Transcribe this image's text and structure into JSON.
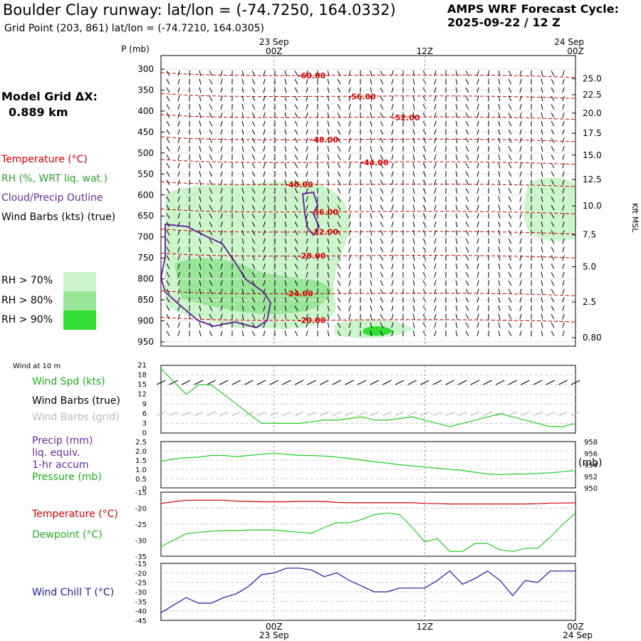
{
  "header": {
    "title": "Boulder Clay runway:  lat/lon = (-74.7250, 164.0332)",
    "subtitle": "Grid Point (203, 861) lat/lon = (-74.7210, 164.0305)",
    "cycle_line1": "AMPS WRF Forecast Cycle:",
    "cycle_line2": "2025-09-22 / 12  Z"
  },
  "left_panel": {
    "grid_label": "Model Grid ΔX:",
    "grid_value": "0.889 km",
    "legend": {
      "temperature": "Temperature (°C)",
      "rh": "RH (%, WRT liq. wat.)",
      "cloud": "Cloud/Precip Outline",
      "wind": "Wind Barbs (kts) (true)"
    },
    "rh_thresholds": [
      "RH > 70%",
      "RH > 80%",
      "RH > 90%"
    ]
  },
  "colors": {
    "temperature": "#d40000",
    "rh": "#2ca02c",
    "cloud": "#6a2c9a",
    "dewpoint": "#22cc22",
    "windchill": "#1a1aa0",
    "gridbarbs": "#bbbbbb",
    "rh70": "#ccf5cc",
    "rh80": "#99e699",
    "rh90": "#33dd33"
  },
  "time_axis": {
    "top_labels": [
      {
        "hour": 0,
        "line1": "23 Sep",
        "line2": "00Z"
      },
      {
        "hour": 12,
        "line1": "",
        "line2": "12Z"
      },
      {
        "hour": 24,
        "line1": "24 Sep",
        "line2": "00Z"
      }
    ],
    "bottom_labels": [
      {
        "hour": 0,
        "line1": "00Z",
        "line2": "23 Sep"
      },
      {
        "hour": 12,
        "line1": "12Z",
        "line2": ""
      },
      {
        "hour": 24,
        "line1": "00Z",
        "line2": "24 Sep"
      }
    ]
  },
  "chart_data": [
    {
      "type": "contour",
      "name": "cross-section",
      "x_range_hours": [
        -9,
        24
      ],
      "pressure_label": "P (mb)",
      "pressure_ticks": [
        300,
        350,
        400,
        450,
        500,
        550,
        600,
        650,
        700,
        750,
        800,
        850,
        900,
        950
      ],
      "kft_label": "Kft MSL",
      "kft_ticks": [
        {
          "label": "25.0",
          "p": 323
        },
        {
          "label": "22.5",
          "p": 361
        },
        {
          "label": "20.0",
          "p": 405
        },
        {
          "label": "17.5",
          "p": 453
        },
        {
          "label": "15.0",
          "p": 505
        },
        {
          "label": "12.5",
          "p": 563
        },
        {
          "label": "10.0",
          "p": 626
        },
        {
          "label": "7.5",
          "p": 695
        },
        {
          "label": "5.0",
          "p": 771
        },
        {
          "label": "2.5",
          "p": 855
        },
        {
          "label": "0.80",
          "p": 940
        }
      ],
      "isotherm_labels": [
        {
          "text": "-60.00",
          "hour": 3,
          "p": 315
        },
        {
          "text": "-56.00",
          "hour": 7,
          "p": 365
        },
        {
          "text": "-52.00",
          "hour": 10.5,
          "p": 415
        },
        {
          "text": "-48.00",
          "hour": 4,
          "p": 468
        },
        {
          "text": "-44.00",
          "hour": 8,
          "p": 522
        },
        {
          "text": "-40.00",
          "hour": 2,
          "p": 575
        },
        {
          "text": "-36.00",
          "hour": 4,
          "p": 640
        },
        {
          "text": "-32.00",
          "hour": 4,
          "p": 688
        },
        {
          "text": "-28.00",
          "hour": 3,
          "p": 745
        },
        {
          "text": "-24.00",
          "hour": 2,
          "p": 835
        },
        {
          "text": "-20.00",
          "hour": 3,
          "p": 898
        }
      ]
    },
    {
      "type": "line",
      "name": "wind",
      "title": "Wind at 10 m",
      "series_labels": [
        "Wind Spd (kts)",
        "Wind Barbs (true)",
        "Wind Barbs (grid)"
      ],
      "y_ticks": [
        0,
        3,
        6,
        9,
        12,
        15,
        18,
        21
      ],
      "ylim": [
        0,
        21
      ],
      "x": [
        -9,
        -8,
        -7,
        -6,
        -5,
        -4,
        -3,
        -2,
        -1,
        0,
        1,
        2,
        3,
        4,
        5,
        6,
        7,
        8,
        9,
        10,
        11,
        12,
        13,
        14,
        15,
        16,
        17,
        18,
        19,
        20,
        21,
        22,
        23,
        24
      ],
      "speed": [
        20,
        16,
        12,
        15,
        15,
        12,
        9,
        6,
        3,
        3,
        3,
        3,
        3.5,
        4,
        4,
        4.5,
        5,
        4,
        4,
        4.5,
        5,
        4,
        3,
        2,
        3,
        4,
        5,
        6,
        5,
        4,
        3,
        2,
        2,
        3
      ]
    },
    {
      "type": "line",
      "name": "pressure-precip",
      "series_labels": [
        "Precip (mm)",
        "liq. equiv.",
        "1-hr accum",
        "Pressure (mb)"
      ],
      "left_ticks": [
        "0",
        "0.5",
        "1.0",
        "1.5",
        "2.0",
        "2.5"
      ],
      "right_ticks": [
        "950",
        "952",
        "954",
        "956",
        "958"
      ],
      "ylim": [
        950,
        958
      ],
      "units": "(mb)",
      "x": [
        -9,
        -8,
        -7,
        -6,
        -5,
        -4,
        -3,
        -2,
        -1,
        0,
        1,
        2,
        3,
        4,
        5,
        6,
        7,
        8,
        9,
        10,
        11,
        12,
        13,
        14,
        15,
        16,
        17,
        18,
        19,
        20,
        21,
        22,
        23,
        24
      ],
      "pressure": [
        954.6,
        955.0,
        955.2,
        955.3,
        955.6,
        955.6,
        955.4,
        955.6,
        955.8,
        956.0,
        955.8,
        955.6,
        955.6,
        955.5,
        955.3,
        955.1,
        954.8,
        954.5,
        954.3,
        954.0,
        953.8,
        953.6,
        953.4,
        953.2,
        953.0,
        952.7,
        952.4,
        952.3,
        952.4,
        952.4,
        952.5,
        952.6,
        952.8,
        953.0
      ]
    },
    {
      "type": "line",
      "name": "temperature-dewpoint",
      "series_labels": [
        "Temperature (°C)",
        "Dewpoint (°C)"
      ],
      "y_ticks": [
        -35,
        -30,
        -25,
        -20,
        -15
      ],
      "ylim": [
        -35,
        -15
      ],
      "x": [
        -9,
        -8,
        -7,
        -6,
        -5,
        -4,
        -3,
        -2,
        -1,
        0,
        1,
        2,
        3,
        4,
        5,
        6,
        7,
        8,
        9,
        10,
        11,
        12,
        13,
        14,
        15,
        16,
        17,
        18,
        19,
        20,
        21,
        22,
        23,
        24
      ],
      "temperature": [
        -18.5,
        -18.0,
        -17.5,
        -17.5,
        -17.5,
        -17.5,
        -17.8,
        -17.9,
        -18.0,
        -18.0,
        -18.0,
        -17.9,
        -17.9,
        -17.9,
        -18.2,
        -18.3,
        -18.3,
        -18.3,
        -18.3,
        -18.3,
        -18.3,
        -18.5,
        -18.6,
        -18.7,
        -18.7,
        -18.7,
        -18.7,
        -18.7,
        -18.7,
        -18.7,
        -18.6,
        -18.4,
        -18.4,
        -18.3
      ],
      "dewpoint": [
        -32,
        -30,
        -28,
        -27.5,
        -27.2,
        -27,
        -27,
        -26.8,
        -26.8,
        -26.8,
        -27.2,
        -27.5,
        -27.8,
        -26,
        -24.5,
        -24.5,
        -23.5,
        -22,
        -21.5,
        -22,
        -26,
        -30.5,
        -29.5,
        -33.5,
        -33.5,
        -31,
        -31,
        -33,
        -33.5,
        -32.5,
        -32.5,
        -29,
        -25,
        -21.5
      ]
    },
    {
      "type": "line",
      "name": "wind-chill",
      "series_labels": [
        "Wind Chill T (°C)"
      ],
      "y_ticks": [
        -45,
        -40,
        -35,
        -30,
        -25,
        -20,
        -15
      ],
      "ylim": [
        -45,
        -15
      ],
      "x": [
        -9,
        -8,
        -7,
        -6,
        -5,
        -4,
        -3,
        -2,
        -1,
        0,
        1,
        2,
        3,
        4,
        5,
        6,
        7,
        8,
        9,
        10,
        11,
        12,
        13,
        14,
        15,
        16,
        17,
        18,
        19,
        20,
        21,
        22,
        23,
        24
      ],
      "windchill": [
        -41,
        -37,
        -33,
        -36,
        -36,
        -33,
        -31,
        -27,
        -21,
        -20,
        -17.5,
        -17.5,
        -18.5,
        -22,
        -20,
        -24,
        -27,
        -30,
        -30,
        -28,
        -28,
        -28,
        -24,
        -19,
        -26,
        -23,
        -19,
        -24,
        -32,
        -24,
        -25,
        -19,
        -19,
        -19
      ]
    }
  ]
}
